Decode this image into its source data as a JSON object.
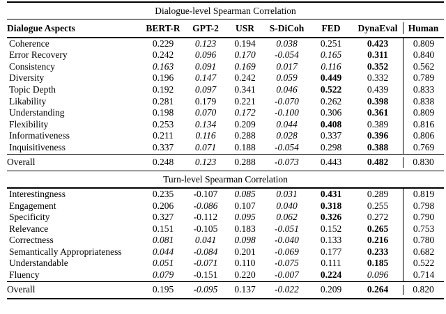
{
  "page": {
    "background_color": "#ffffff",
    "text_color": "#000000",
    "rule_color": "#000000"
  },
  "table": {
    "columns": [
      "Dialogue Aspects",
      "BERT-R",
      "GPT-2",
      "USR",
      "S-DiCoh",
      "FED",
      "DynaEval",
      "Human"
    ],
    "style_legend": {
      "n": "normal",
      "i": "italic",
      "b": "bold"
    },
    "sections": [
      {
        "title": "Dialogue-level Spearman Correlation",
        "rows": [
          {
            "aspect": "Coherence",
            "values": [
              "0.229",
              "0.123",
              "0.194",
              "0.038",
              "0.251",
              "0.423",
              "0.809"
            ],
            "styles": [
              "n",
              "i",
              "n",
              "i",
              "n",
              "b",
              "n"
            ]
          },
          {
            "aspect": "Error Recovery",
            "values": [
              "0.242",
              "0.096",
              "0.170",
              "-0.054",
              "0.165",
              "0.311",
              "0.840"
            ],
            "styles": [
              "n",
              "i",
              "i",
              "i",
              "i",
              "b",
              "n"
            ]
          },
          {
            "aspect": "Consistency",
            "values": [
              "0.163",
              "0.091",
              "0.169",
              "0.017",
              "0.116",
              "0.352",
              "0.562"
            ],
            "styles": [
              "i",
              "i",
              "i",
              "i",
              "i",
              "b",
              "n"
            ]
          },
          {
            "aspect": "Diversity",
            "values": [
              "0.196",
              "0.147",
              "0.242",
              "0.059",
              "0.449",
              "0.332",
              "0.789"
            ],
            "styles": [
              "n",
              "i",
              "n",
              "i",
              "b",
              "n",
              "n"
            ]
          },
          {
            "aspect": "Topic Depth",
            "values": [
              "0.192",
              "0.097",
              "0.341",
              "0.046",
              "0.522",
              "0.439",
              "0.833"
            ],
            "styles": [
              "n",
              "i",
              "n",
              "i",
              "b",
              "n",
              "n"
            ]
          },
          {
            "aspect": "Likability",
            "values": [
              "0.281",
              "0.179",
              "0.221",
              "-0.070",
              "0.262",
              "0.398",
              "0.838"
            ],
            "styles": [
              "n",
              "n",
              "n",
              "i",
              "n",
              "b",
              "n"
            ]
          },
          {
            "aspect": "Understanding",
            "values": [
              "0.198",
              "0.070",
              "0.172",
              "-0.100",
              "0.306",
              "0.361",
              "0.809"
            ],
            "styles": [
              "n",
              "i",
              "i",
              "i",
              "n",
              "b",
              "n"
            ]
          },
          {
            "aspect": "Flexibility",
            "values": [
              "0.253",
              "0.134",
              "0.209",
              "0.044",
              "0.408",
              "0.389",
              "0.816"
            ],
            "styles": [
              "n",
              "i",
              "n",
              "i",
              "b",
              "n",
              "n"
            ]
          },
          {
            "aspect": "Informativeness",
            "values": [
              "0.211",
              "0.116",
              "0.288",
              "0.028",
              "0.337",
              "0.396",
              "0.806"
            ],
            "styles": [
              "n",
              "i",
              "n",
              "i",
              "n",
              "b",
              "n"
            ]
          },
          {
            "aspect": "Inquisitiveness",
            "values": [
              "0.337",
              "0.071",
              "0.188",
              "-0.054",
              "0.298",
              "0.388",
              "0.769"
            ],
            "styles": [
              "n",
              "i",
              "n",
              "i",
              "n",
              "b",
              "n"
            ]
          }
        ],
        "overall": {
          "aspect": "Overall",
          "values": [
            "0.248",
            "0.123",
            "0.288",
            "-0.073",
            "0.443",
            "0.482",
            "0.830"
          ],
          "styles": [
            "n",
            "i",
            "n",
            "i",
            "n",
            "b",
            "n"
          ]
        }
      },
      {
        "title": "Turn-level Spearman Correlation",
        "rows": [
          {
            "aspect": "Interestingness",
            "values": [
              "0.235",
              "-0.107",
              "0.085",
              "0.031",
              "0.431",
              "0.289",
              "0.819"
            ],
            "styles": [
              "n",
              "n",
              "i",
              "i",
              "b",
              "n",
              "n"
            ]
          },
          {
            "aspect": "Engagement",
            "values": [
              "0.206",
              "-0.086",
              "0.107",
              "0.040",
              "0.318",
              "0.255",
              "0.798"
            ],
            "styles": [
              "n",
              "i",
              "n",
              "i",
              "b",
              "n",
              "n"
            ]
          },
          {
            "aspect": "Specificity",
            "values": [
              "0.327",
              "-0.112",
              "0.095",
              "0.062",
              "0.326",
              "0.272",
              "0.790"
            ],
            "styles": [
              "n",
              "n",
              "i",
              "i",
              "b",
              "n",
              "n"
            ]
          },
          {
            "aspect": "Relevance",
            "values": [
              "0.151",
              "-0.105",
              "0.183",
              "-0.051",
              "0.152",
              "0.265",
              "0.753"
            ],
            "styles": [
              "n",
              "n",
              "n",
              "i",
              "n",
              "b",
              "n"
            ]
          },
          {
            "aspect": "Correctness",
            "values": [
              "0.081",
              "0.041",
              "0.098",
              "-0.040",
              "0.133",
              "0.216",
              "0.780"
            ],
            "styles": [
              "i",
              "i",
              "i",
              "i",
              "n",
              "b",
              "n"
            ]
          },
          {
            "aspect": "Semantically Appropriateness",
            "values": [
              "0.044",
              "-0.084",
              "0.201",
              "-0.069",
              "0.177",
              "0.233",
              "0.682"
            ],
            "styles": [
              "i",
              "i",
              "n",
              "i",
              "n",
              "b",
              "n"
            ]
          },
          {
            "aspect": "Understandable",
            "values": [
              "0.051",
              "-0.071",
              "0.110",
              "-0.075",
              "0.111",
              "0.185",
              "0.522"
            ],
            "styles": [
              "i",
              "i",
              "n",
              "i",
              "n",
              "b",
              "n"
            ]
          },
          {
            "aspect": "Fluency",
            "values": [
              "0.079",
              "-0.151",
              "0.220",
              "-0.007",
              "0.224",
              "0.096",
              "0.714"
            ],
            "styles": [
              "i",
              "n",
              "n",
              "i",
              "b",
              "i",
              "n"
            ]
          }
        ],
        "overall": {
          "aspect": "Overall",
          "values": [
            "0.195",
            "-0.095",
            "0.137",
            "-0.022",
            "0.209",
            "0.264",
            "0.820"
          ],
          "styles": [
            "n",
            "i",
            "n",
            "i",
            "n",
            "b",
            "n"
          ]
        }
      }
    ]
  }
}
